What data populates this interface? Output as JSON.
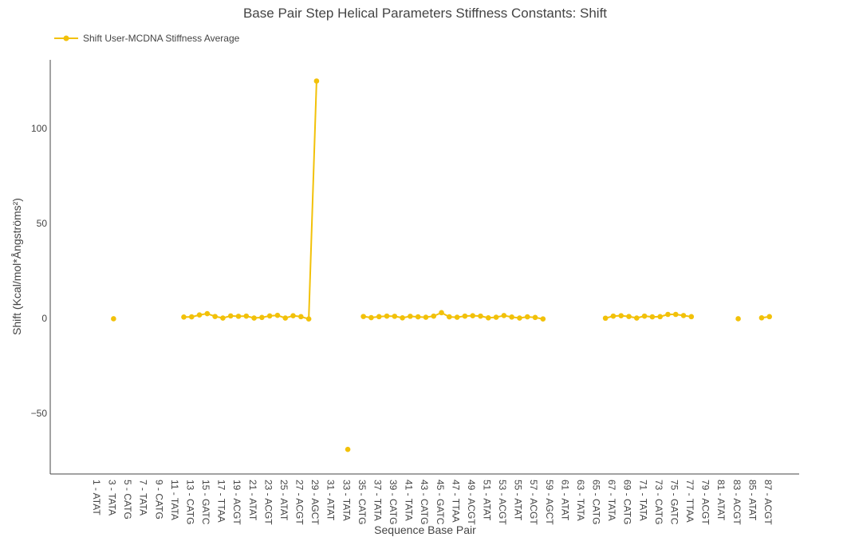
{
  "chart_data": {
    "type": "line",
    "title": "Base Pair Step Helical Parameters Stiffness Constants: Shift",
    "xlabel": "Sequence Base Pair",
    "ylabel": "Shift (Kcal/mol*Ångströms²)",
    "ylim": [
      -80,
      130
    ],
    "yticks": [
      100,
      50,
      0,
      -50
    ],
    "ytick_labels": [
      "100",
      "50",
      "0",
      "−50"
    ],
    "xtick_labels": [
      "1 - ATAT",
      "3 - TATA",
      "5 - CATG",
      "7 - TATA",
      "9 - CATG",
      "11 - TATA",
      "13 - CATG",
      "15 - GATC",
      "17 - TTAA",
      "19 - ACGT",
      "21 - ATAT",
      "23 - ACGT",
      "25 - ATAT",
      "27 - ACGT",
      "29 - AGCT",
      "31 - ATAT",
      "33 - TATA",
      "35 - CATG",
      "37 - TATA",
      "39 - CATG",
      "41 - TATA",
      "43 - CATG",
      "45 - GATC",
      "47 - TTAA",
      "49 - ACGT",
      "51 - ATAT",
      "53 - ACGT",
      "55 - ATAT",
      "57 - ACGT",
      "59 - AGCT",
      "61 - ATAT",
      "63 - TATA",
      "65 - CATG",
      "67 - TATA",
      "69 - CATG",
      "71 - TATA",
      "73 - CATG",
      "75 - GATC",
      "77 - TTAA",
      "79 - ACGT",
      "81 - ATAT",
      "83 - ACGT",
      "85 - ATAT",
      "87 - ACGT"
    ],
    "legend_position": "top-left",
    "grid": false,
    "series": [
      {
        "name": "Shift User-MCDNA Stiffness Average",
        "color": "#f2c109",
        "values": [
          null,
          null,
          null,
          -0.2,
          null,
          null,
          null,
          null,
          null,
          null,
          null,
          null,
          0.7,
          0.8,
          1.8,
          2.5,
          1.0,
          0.2,
          1.3,
          1.1,
          1.2,
          0.2,
          0.5,
          1.3,
          1.6,
          0.2,
          1.4,
          0.9,
          -0.3,
          125.0,
          null,
          null,
          null,
          -69.0,
          null,
          1.0,
          0.4,
          0.9,
          1.2,
          1.1,
          0.3,
          1.1,
          0.8,
          0.6,
          1.2,
          3.0,
          0.8,
          0.6,
          1.2,
          1.4,
          1.2,
          0.3,
          0.6,
          1.5,
          0.7,
          0.2,
          0.8,
          0.5,
          -0.3,
          null,
          null,
          null,
          null,
          null,
          null,
          null,
          0.1,
          1.2,
          1.4,
          1.0,
          0.2,
          1.2,
          0.8,
          0.9,
          2.1,
          2.1,
          1.5,
          0.9,
          null,
          null,
          null,
          null,
          null,
          -0.2,
          null,
          null,
          0.3,
          0.9
        ]
      }
    ]
  }
}
